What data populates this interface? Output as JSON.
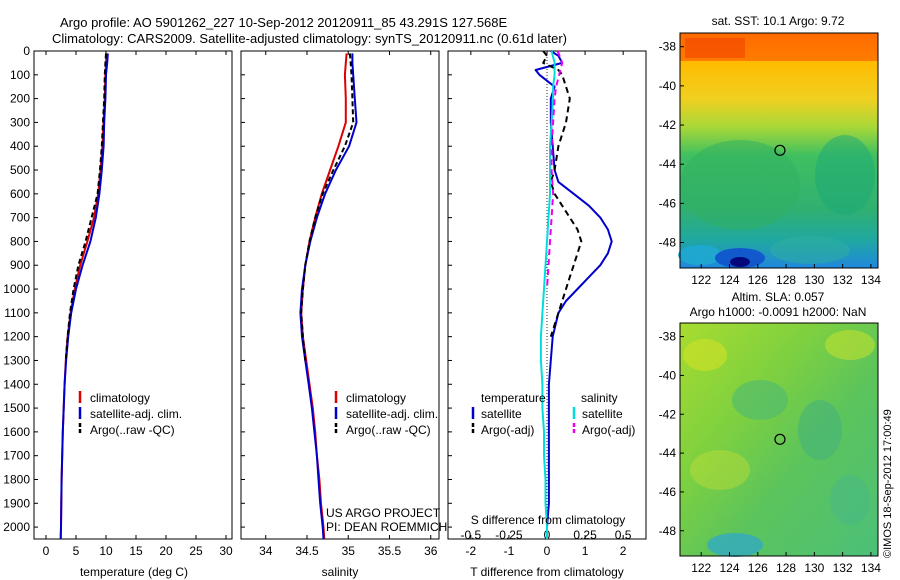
{
  "header": {
    "line1": "Argo profile: AO 5901262_227 10-Sep-2012 20120911_85 43.291S 127.568E",
    "line2": "Climatology: CARS2009. Satellite-adjusted climatology: synTS_20120911.nc (0.61d later)"
  },
  "credit": {
    "line1": "US ARGO PROJECT",
    "line2": "PI: DEAN ROEMMICH"
  },
  "watermark": "©IMOS 18-Sep-2012 17:00:49",
  "map_sst": {
    "title": "sat. SST: 10.1  Argo: 9.72",
    "x_ticks": [
      "122",
      "124",
      "126",
      "128",
      "130",
      "132",
      "134"
    ],
    "y_ticks": [
      "-38",
      "-40",
      "-42",
      "-44",
      "-46",
      "-48"
    ],
    "marker_lon": 127.568,
    "marker_lat": -43.291
  },
  "map_sla": {
    "title_line1": "Altim. SLA: 0.057",
    "title_line2": "Argo h1000: -0.0091 h2000: NaN",
    "x_ticks": [
      "122",
      "124",
      "126",
      "128",
      "130",
      "132",
      "134"
    ],
    "y_ticks": [
      "-38",
      "-40",
      "-42",
      "-44",
      "-46",
      "-48"
    ],
    "marker_lon": 127.568,
    "marker_lat": -43.291
  },
  "chart_data": [
    {
      "type": "line",
      "xlabel": "temperature (deg C)",
      "xlim": [
        -2,
        31
      ],
      "ylim": [
        0,
        2050
      ],
      "x_ticks": [
        0,
        5,
        10,
        15,
        20,
        25,
        30
      ],
      "y_ticks": [
        0,
        100,
        200,
        300,
        400,
        500,
        600,
        700,
        800,
        900,
        1000,
        1100,
        1200,
        1300,
        1400,
        1500,
        1600,
        1700,
        1800,
        1900,
        2000
      ],
      "legend": [
        "climatology",
        "satellite-adj. clim.",
        "Argo(..raw -QC)"
      ],
      "series": [
        {
          "name": "climatology",
          "color": "#dd0000",
          "dash": "",
          "depth": [
            10,
            50,
            100,
            200,
            300,
            400,
            500,
            600,
            700,
            800,
            900,
            1000,
            1100,
            1200,
            1300,
            1400,
            1500,
            1600,
            1700,
            1800,
            1900,
            2000,
            2050
          ],
          "values": [
            10.1,
            10.0,
            9.9,
            9.8,
            9.6,
            9.4,
            9.1,
            8.7,
            8.0,
            6.9,
            5.7,
            4.8,
            4.1,
            3.6,
            3.3,
            3.1,
            2.95,
            2.8,
            2.7,
            2.6,
            2.55,
            2.5,
            2.45
          ]
        },
        {
          "name": "satellite-adj. clim.",
          "color": "#0000cc",
          "dash": "",
          "depth": [
            10,
            50,
            100,
            200,
            300,
            400,
            500,
            600,
            700,
            800,
            900,
            1000,
            1100,
            1200,
            1300,
            1400,
            1500,
            1600,
            1700,
            1800,
            1900,
            2000,
            2050
          ],
          "values": [
            10.3,
            10.2,
            10.0,
            9.9,
            9.7,
            9.6,
            9.3,
            8.9,
            8.3,
            7.4,
            6.1,
            5.0,
            4.2,
            3.7,
            3.35,
            3.1,
            2.95,
            2.8,
            2.7,
            2.6,
            2.55,
            2.5,
            2.45
          ]
        },
        {
          "name": "Argo(..raw -QC)",
          "color": "#000000",
          "dash": "5,3",
          "depth": [
            10,
            50,
            100,
            200,
            300,
            400,
            500,
            600,
            700,
            800,
            900,
            1000,
            1100,
            1200,
            1300
          ],
          "values": [
            10.0,
            9.9,
            9.8,
            9.7,
            9.5,
            9.3,
            9.0,
            8.6,
            7.6,
            6.6,
            5.4,
            4.6,
            4.0,
            3.6,
            3.3
          ]
        }
      ]
    },
    {
      "type": "line",
      "xlabel": "salinity",
      "xlim": [
        33.7,
        36.1
      ],
      "ylim": [
        0,
        2050
      ],
      "x_ticks": [
        34,
        34.5,
        35,
        35.5,
        36
      ],
      "legend": [
        "climatology",
        "satellite-adj. clim.",
        "Argo(..raw -QC)"
      ],
      "series": [
        {
          "name": "climatology",
          "color": "#dd0000",
          "dash": "",
          "depth": [
            10,
            50,
            100,
            200,
            300,
            400,
            500,
            600,
            700,
            800,
            900,
            1000,
            1100,
            1200,
            1300,
            1400,
            1500,
            1600,
            1700,
            1800,
            1900,
            2000,
            2050
          ],
          "values": [
            34.98,
            34.97,
            34.96,
            34.97,
            34.97,
            34.88,
            34.78,
            34.68,
            34.6,
            34.53,
            34.48,
            34.45,
            34.43,
            34.45,
            34.49,
            34.53,
            34.57,
            34.6,
            34.62,
            34.65,
            34.67,
            34.7,
            34.71
          ]
        },
        {
          "name": "satellite-adj. clim.",
          "color": "#0000cc",
          "dash": "",
          "depth": [
            10,
            50,
            100,
            200,
            300,
            400,
            500,
            600,
            700,
            800,
            900,
            1000,
            1100,
            1200,
            1300,
            1400,
            1500,
            1600,
            1700,
            1800,
            1900,
            2000,
            2050
          ],
          "values": [
            35.05,
            35.05,
            35.06,
            35.08,
            35.1,
            35.01,
            34.85,
            34.72,
            34.62,
            34.54,
            34.48,
            34.44,
            34.42,
            34.44,
            34.48,
            34.52,
            34.56,
            34.59,
            34.62,
            34.64,
            34.66,
            34.69,
            34.7
          ]
        },
        {
          "name": "Argo(..raw -QC)",
          "color": "#000000",
          "dash": "5,3",
          "depth": [
            10,
            50,
            100,
            200,
            300,
            400,
            500,
            600,
            700,
            800,
            900,
            1000,
            1100,
            1200,
            1300
          ],
          "values": [
            35.02,
            35.03,
            35.04,
            35.05,
            35.06,
            34.96,
            34.82,
            34.69,
            34.6,
            34.53,
            34.48,
            34.45,
            34.43,
            34.45,
            34.48
          ]
        }
      ]
    },
    {
      "type": "line",
      "xlabel": "T difference from climatology",
      "top_axis_label": "S difference from climatology",
      "xlim": [
        -2.6,
        2.6
      ],
      "ylim": [
        0,
        2050
      ],
      "x_ticks": [
        -2,
        -1,
        0,
        1,
        2
      ],
      "s_ticks": [
        -0.5,
        -0.25,
        0,
        0.25,
        0.5
      ],
      "s_tick_labels": [
        "-0.5",
        "-0.25",
        "0",
        "0.25",
        "0.5"
      ],
      "legend_headers": [
        "temperature",
        "salinity"
      ],
      "legend": [
        "satellite",
        "Argo(-adj)",
        "satellite",
        "Argo(-adj)"
      ],
      "series": [
        {
          "name": "satellite",
          "group": "temperature",
          "color": "#0000cc",
          "dash": "",
          "depth": [
            0,
            20,
            50,
            80,
            100,
            150,
            200,
            300,
            400,
            500,
            550,
            600,
            650,
            700,
            750,
            800,
            850,
            900,
            950,
            1000,
            1050,
            1100,
            1200,
            1300,
            1400,
            1500,
            1600,
            1700,
            1800,
            1900,
            2000,
            2050
          ],
          "values": [
            0.1,
            0.3,
            0.4,
            -0.3,
            -0.2,
            0.2,
            0.1,
            0.1,
            0.15,
            0.2,
            0.3,
            0.7,
            1.1,
            1.4,
            1.6,
            1.7,
            1.6,
            1.4,
            1.1,
            0.8,
            0.5,
            0.3,
            0.15,
            0.1,
            0.05,
            0.05,
            0.05,
            0.05,
            0.05,
            0.05,
            0.0,
            0.0
          ]
        },
        {
          "name": "Argo(-adj)",
          "group": "temperature",
          "color": "#000000",
          "dash": "6,4",
          "depth": [
            0,
            20,
            50,
            80,
            100,
            150,
            200,
            300,
            400,
            500,
            550,
            600,
            650,
            700,
            750,
            800,
            850,
            900,
            950,
            1000,
            1050,
            1100,
            1200
          ],
          "values": [
            -0.1,
            0.0,
            -0.1,
            0.3,
            0.4,
            0.5,
            0.6,
            0.5,
            0.3,
            0.2,
            0.1,
            0.2,
            0.4,
            0.6,
            0.8,
            0.9,
            0.8,
            0.7,
            0.6,
            0.5,
            0.4,
            0.3,
            0.1
          ]
        },
        {
          "name": "satellite",
          "group": "salinity",
          "color": "#00dddd",
          "dash": "",
          "depth": [
            0,
            50,
            100,
            150,
            200,
            300,
            400,
            500,
            600,
            700,
            800,
            900,
            1000,
            1100,
            1200,
            1300,
            1400,
            1500,
            1600,
            1700,
            1800,
            1900,
            2000,
            2050
          ],
          "values": [
            0.03,
            0.05,
            0.05,
            0.04,
            0.04,
            0.03,
            0.02,
            0.02,
            0.02,
            0.01,
            0.0,
            -0.01,
            -0.02,
            -0.03,
            -0.04,
            -0.04,
            -0.03,
            -0.03,
            -0.02,
            -0.02,
            -0.01,
            -0.01,
            0.0,
            0.0
          ]
        },
        {
          "name": "Argo(-adj)",
          "group": "salinity",
          "color": "#ee00ee",
          "dash": "6,4",
          "depth": [
            0,
            50,
            100,
            150,
            200,
            300,
            400,
            500,
            600,
            700,
            800,
            900,
            1000
          ],
          "values": [
            0.07,
            0.1,
            0.08,
            0.06,
            0.05,
            0.04,
            0.03,
            0.03,
            0.04,
            0.03,
            0.02,
            0.01,
            0.0
          ]
        }
      ]
    }
  ]
}
